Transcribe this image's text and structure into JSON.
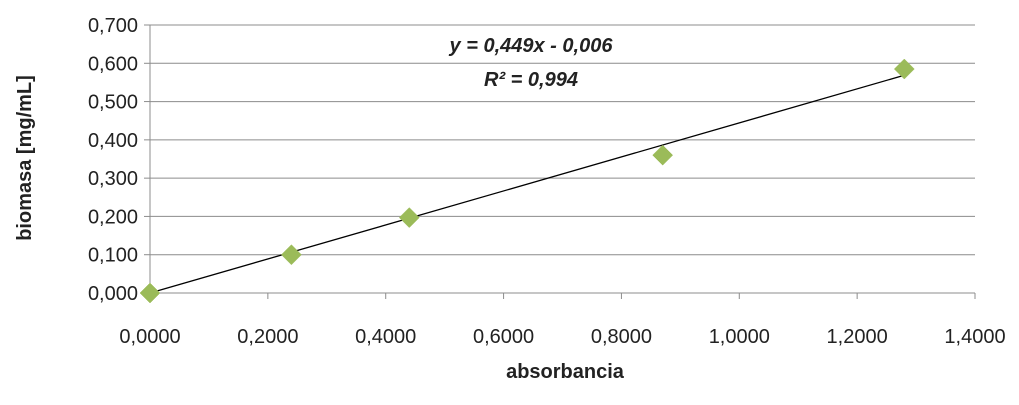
{
  "chart_data": {
    "type": "scatter",
    "xlabel": "absorbancia",
    "ylabel": "biomasa [mg/mL]",
    "xlim": [
      0,
      1.4
    ],
    "ylim": [
      0,
      0.7
    ],
    "x_ticks": [
      "0,0000",
      "0,2000",
      "0,4000",
      "0,6000",
      "0,8000",
      "1,0000",
      "1,2000",
      "1,4000"
    ],
    "y_ticks": [
      "0,000",
      "0,100",
      "0,200",
      "0,300",
      "0,400",
      "0,500",
      "0,600",
      "0,700"
    ],
    "x_tick_values": [
      0,
      0.2,
      0.4,
      0.6,
      0.8,
      1.0,
      1.2,
      1.4
    ],
    "y_tick_values": [
      0,
      0.1,
      0.2,
      0.3,
      0.4,
      0.5,
      0.6,
      0.7
    ],
    "grid": "horizontal",
    "series": [
      {
        "points": [
          {
            "x": 0.0,
            "y": 0.0
          },
          {
            "x": 0.24,
            "y": 0.1
          },
          {
            "x": 0.44,
            "y": 0.197
          },
          {
            "x": 0.87,
            "y": 0.36
          },
          {
            "x": 1.28,
            "y": 0.585
          }
        ],
        "marker": "diamond",
        "color": "#9bbb59"
      }
    ],
    "trendline": {
      "slope": 0.449,
      "intercept": -0.006,
      "x_range": [
        0.0,
        1.28
      ],
      "color": "#000000",
      "equation": "y = 0,449x - 0,006",
      "r_squared": "R² = 0,994"
    }
  }
}
